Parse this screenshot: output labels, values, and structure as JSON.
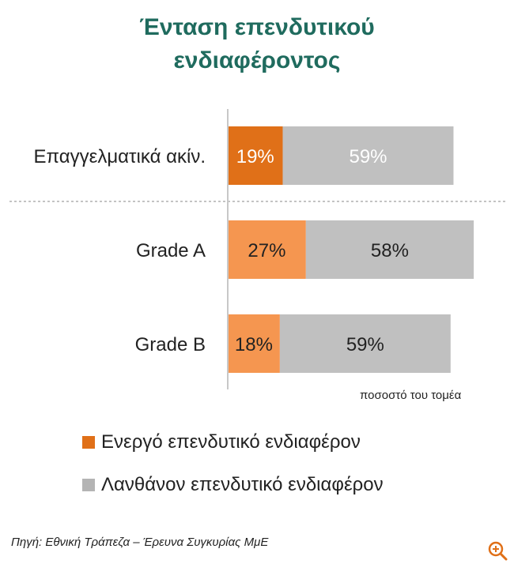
{
  "title_lines": [
    "Ένταση επενδυτικού",
    "ενδιαφέροντος"
  ],
  "chart_data": {
    "type": "bar",
    "orientation": "horizontal",
    "stacked": true,
    "categories": [
      "Επαγγελματικά ακίν.",
      "Grade A",
      "Grade B"
    ],
    "series": [
      {
        "name": "Ενεργό επενδυτικό ενδιαφέρον",
        "values": [
          19,
          27,
          18
        ],
        "labels": [
          "19%",
          "27%",
          "18%"
        ]
      },
      {
        "name": "Λανθάνον επενδυτικό ενδιαφέρον",
        "values": [
          59,
          58,
          59
        ],
        "labels": [
          "59%",
          "58%",
          "59%"
        ]
      }
    ],
    "xlabel": "ποσοστό του τομέα",
    "xlim": [
      0,
      100
    ],
    "grid": false,
    "legend_position": "bottom-left",
    "separator_after_category": 0
  },
  "colors": {
    "title": "#1f6b5e",
    "active_first": "#e07018",
    "active": "#f59650",
    "latent": "#c0c0c0",
    "text": "#222222"
  },
  "legend": [
    {
      "label": "Ενεργό επενδυτικό ενδιαφέρον",
      "color": "#e07018"
    },
    {
      "label": "Λανθάνον επενδυτικό ενδιαφέρον",
      "color": "#b4b4b4"
    }
  ],
  "source": "Πηγή: Εθνική Τράπεζα – Έρευνα Συγκυρίας ΜμΕ",
  "zoom_icon": "zoom-in-icon"
}
